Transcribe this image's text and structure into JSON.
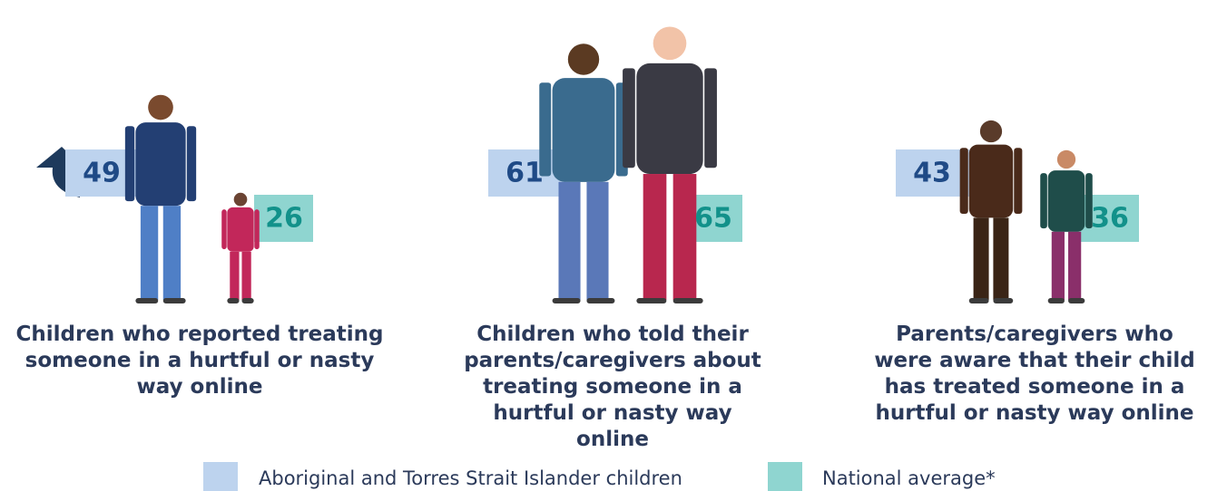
{
  "chart_data": {
    "type": "pictograph",
    "categories": [
      "Children who reported treating someone in a hurtful or nasty way online",
      "Children who told their parents/caregivers about treating someone in a hurtful or nasty way online",
      "Parents/caregivers who were aware that their child has treated someone in a hurtful or nasty way online"
    ],
    "series": [
      {
        "name": "Aboriginal and Torres Strait Islander children",
        "color": "#bdd3ee",
        "label_color": "#1f4a86",
        "values": [
          49,
          61,
          43
        ]
      },
      {
        "name": "National average*",
        "color": "#8fd5d0",
        "label_color": "#12918a",
        "values": [
          26,
          65,
          36
        ]
      }
    ]
  }
}
